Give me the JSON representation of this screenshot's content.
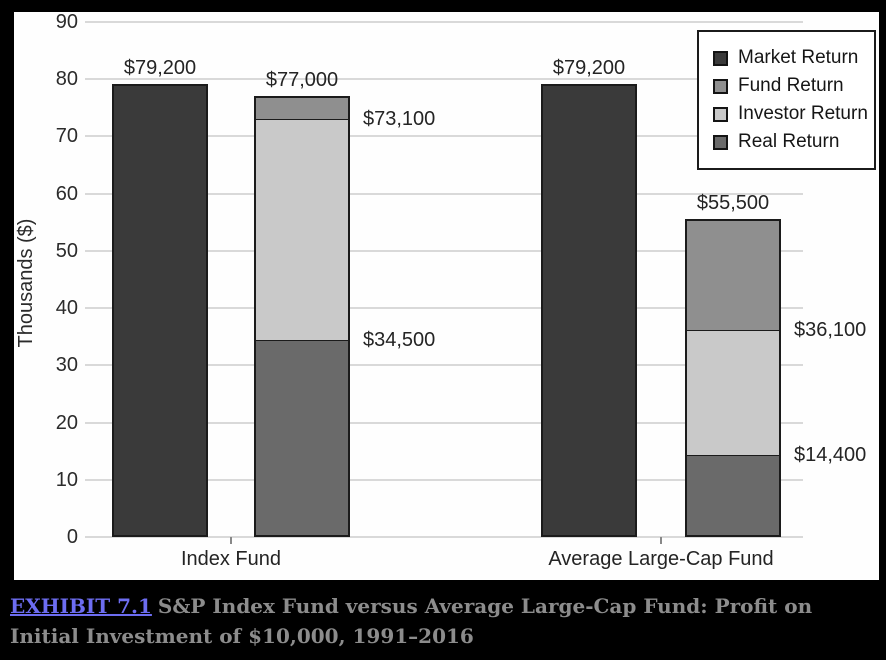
{
  "page_background": "#000000",
  "panel_background": "#fefefe",
  "chart_data": {
    "type": "bar",
    "variant": "grouped, second bar of each group stacked",
    "title": "",
    "xlabel": "",
    "ylabel": "Thousands ($)",
    "ylim": [
      0,
      90
    ],
    "yticks": [
      0,
      10,
      20,
      30,
      40,
      50,
      60,
      70,
      80,
      90
    ],
    "grid": true,
    "gridline_color": "#d9d9d9",
    "bar_border_color": "#1b1b1b",
    "series_colors": {
      "Market Return": "#3a3a3a",
      "Fund Return": "#8f8f8f",
      "Investor Return": "#c9c9c9",
      "Real Return": "#6a6a6a"
    },
    "legend": {
      "position": "upper-right",
      "items": [
        {
          "label": "Market Return",
          "color": "#3a3a3a"
        },
        {
          "label": "Fund Return",
          "color": "#8f8f8f"
        },
        {
          "label": "Investor Return",
          "color": "#c9c9c9"
        },
        {
          "label": "Real Return",
          "color": "#6a6a6a"
        }
      ]
    },
    "groups": [
      {
        "label": "Index Fund",
        "bars": [
          {
            "kind": "solid",
            "series": "Market Return",
            "value": 79.2,
            "value_label": "$79,200",
            "label_position": "above"
          },
          {
            "kind": "stacked",
            "segments": [
              {
                "series": "Real Return",
                "cumulative_top": 34.5,
                "value_label": "$34,500",
                "label_position": "right"
              },
              {
                "series": "Investor Return",
                "cumulative_top": 73.1,
                "value_label": "$73,100",
                "label_position": "right"
              },
              {
                "series": "Fund Return",
                "cumulative_top": 77.0,
                "value_label": "$77,000",
                "label_position": "above"
              }
            ]
          }
        ]
      },
      {
        "label": "Average Large-Cap Fund",
        "bars": [
          {
            "kind": "solid",
            "series": "Market Return",
            "value": 79.2,
            "value_label": "$79,200",
            "label_position": "above"
          },
          {
            "kind": "stacked",
            "segments": [
              {
                "series": "Real Return",
                "cumulative_top": 14.4,
                "value_label": "$14,400",
                "label_position": "right"
              },
              {
                "series": "Investor Return",
                "cumulative_top": 36.1,
                "value_label": "$36,100",
                "label_position": "right"
              },
              {
                "series": "Fund Return",
                "cumulative_top": 55.5,
                "value_label": "$55,500",
                "label_position": "above"
              }
            ]
          }
        ]
      }
    ]
  },
  "caption": {
    "link_text": "EXHIBIT 7.1",
    "text": "S&P Index Fund versus Average Large-Cap Fund: Profit on Initial Investment of $10,000, 1991–2016",
    "link_color": "#6d6df1",
    "text_color": "#8c8c8c"
  }
}
